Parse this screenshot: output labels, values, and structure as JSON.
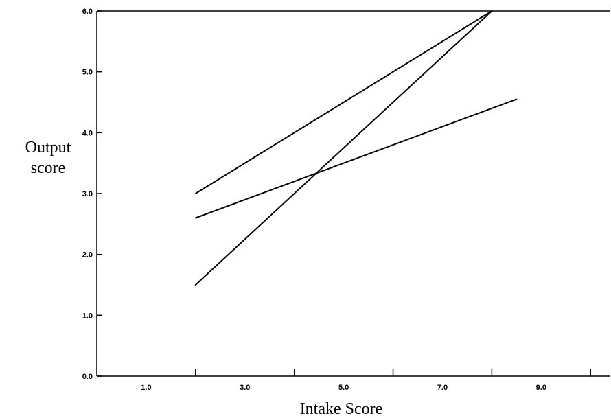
{
  "chart_data": {
    "type": "line",
    "title": "",
    "xlabel": "Intake Score",
    "ylabel_lines": [
      "Output",
      "score"
    ],
    "xlim": [
      0,
      10.4
    ],
    "ylim": [
      0,
      6
    ],
    "x_tick_labels": [
      "1.0",
      "3.0",
      "5.0",
      "7.0",
      "9.0"
    ],
    "x_tick_label_values": [
      1,
      3,
      5,
      7,
      9
    ],
    "x_tick_values": [
      2,
      4,
      6,
      8,
      10
    ],
    "y_ticks": [
      "0.0",
      "1.0",
      "2.0",
      "3.0",
      "4.0",
      "5.0",
      "6.0"
    ],
    "y_tick_values": [
      0,
      1,
      2,
      3,
      4,
      5,
      6
    ],
    "grid": false,
    "legend": "none",
    "series": [
      {
        "x": [
          2,
          8
        ],
        "y": [
          3.0,
          6.0
        ]
      },
      {
        "x": [
          2,
          8
        ],
        "y": [
          1.5,
          6.0
        ]
      },
      {
        "x": [
          2,
          8.5
        ],
        "y": [
          2.6,
          4.55
        ]
      }
    ],
    "line_color": "#000000"
  }
}
